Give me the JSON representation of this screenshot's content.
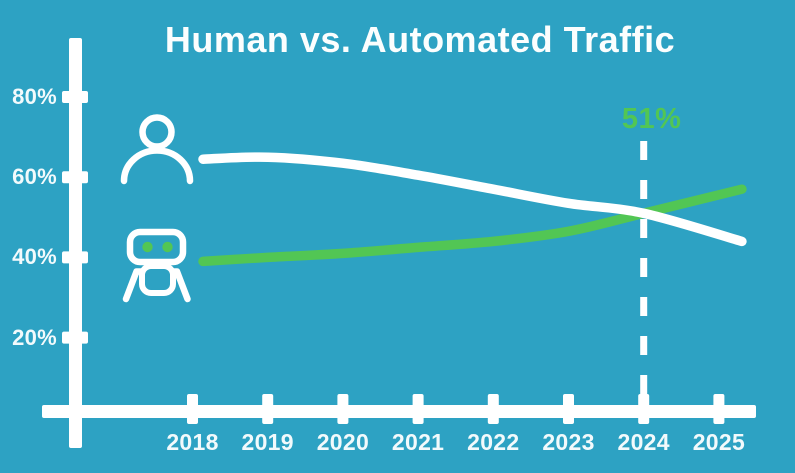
{
  "title": "Human vs. Automated Traffic",
  "colors": {
    "background": "#2DA2C3",
    "green": "#52C654",
    "white": "#FFFFFF",
    "label_white": "#F2FAFC"
  },
  "icons": {
    "human_series": "person-icon",
    "automated_series": "robot-icon"
  },
  "chart_data": {
    "type": "line",
    "title": "Human vs. Automated Traffic",
    "x": [
      2018,
      2019,
      2020,
      2021,
      2022,
      2023,
      2024,
      2025
    ],
    "x_tick_labels": [
      "2018",
      "2019",
      "2020",
      "2021",
      "2022",
      "2023",
      "2024",
      "2025"
    ],
    "y_tick_labels": [
      "80%",
      "60%",
      "40%",
      "20%"
    ],
    "y_tick_values": [
      80,
      60,
      40,
      20
    ],
    "ylim": [
      0,
      88
    ],
    "grid": false,
    "legend_position": "icons-at-line-start (person = human, robot = automated)",
    "series": [
      {
        "name": "Automated traffic",
        "icon": "robot-icon",
        "color": "#52C654",
        "values": [
          39,
          40,
          41,
          42.5,
          44,
          46.5,
          51,
          57
        ]
      },
      {
        "name": "Human traffic",
        "icon": "person-icon",
        "color": "#FFFFFF",
        "values": [
          64.5,
          65,
          63.5,
          60.5,
          57,
          53.5,
          51,
          44
        ]
      }
    ],
    "annotation": {
      "label": "51%",
      "year": 2024,
      "value": 51
    }
  }
}
